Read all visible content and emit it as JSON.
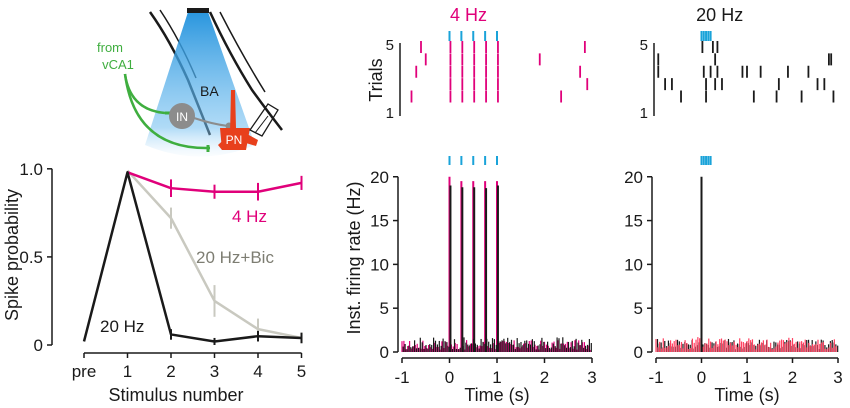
{
  "colors": {
    "magenta": "#e0007a",
    "black": "#1a1a1a",
    "gray": "#c9c9c0",
    "gray_text": "#7d7d72",
    "cyan": "#1aa3d9",
    "green": "#3fae3f",
    "red": "#e8401c",
    "in_gray": "#8c8c8c",
    "light_blue": "#2a9be0",
    "noise_red": "#ff4060"
  },
  "schematic": {
    "from_label": "from",
    "source_label": "vCA1",
    "region_label": "BA",
    "interneuron_label": "IN",
    "principal_label": "PN",
    "icons": [
      "light-cone-icon",
      "interneuron-icon",
      "principal-neuron-icon",
      "electrode-icon"
    ]
  },
  "chart_data": [
    {
      "id": "spike_probability",
      "type": "line",
      "xlabel": "Stimulus number",
      "ylabel": "Spike probability",
      "x_tick_labels": [
        "pre",
        "1",
        "2",
        "3",
        "4",
        "5"
      ],
      "x": [
        0,
        1,
        2,
        3,
        4,
        5
      ],
      "y_ticks": [
        0,
        0.5,
        1.0
      ],
      "y_tick_labels": [
        "0",
        "0.5",
        "1.0"
      ],
      "ylim": [
        0,
        1.05
      ],
      "series": [
        {
          "name": "4 Hz",
          "color": "#e0007a",
          "values": [
            null,
            0.98,
            0.89,
            0.87,
            0.87,
            0.92
          ],
          "errors": [
            0,
            0,
            0.05,
            0.04,
            0.05,
            0.04
          ]
        },
        {
          "name": "20 Hz+Bic",
          "color": "#c9c9c0",
          "label_color": "#7d7d72",
          "values": [
            null,
            0.99,
            0.72,
            0.25,
            0.09,
            0.04
          ],
          "errors": [
            0,
            0,
            0.06,
            0.09,
            0.06,
            0.03
          ]
        },
        {
          "name": "20 Hz",
          "color": "#1a1a1a",
          "values": [
            0.02,
            0.98,
            0.06,
            0.02,
            0.05,
            0.04
          ],
          "errors": [
            0,
            0,
            0.03,
            0.02,
            0.03,
            0.03
          ]
        }
      ]
    },
    {
      "id": "raster_4hz",
      "type": "scatter",
      "title": "4 Hz",
      "ylabel": "Trials",
      "y_tick_labels": [
        "5",
        "1"
      ],
      "xlim": [
        -1,
        3
      ],
      "ylim": [
        1,
        5
      ],
      "stim_times": [
        0,
        0.25,
        0.5,
        0.75,
        1.0
      ],
      "spike_times": [
        {
          "trial": 5,
          "times": [
            -0.6,
            0.02,
            0.27,
            0.52,
            0.77,
            1.02,
            2.85
          ]
        },
        {
          "trial": 4.25,
          "times": [
            -0.5,
            0.02,
            0.27,
            0.52,
            0.77,
            1.02,
            1.9
          ]
        },
        {
          "trial": 3.5,
          "times": [
            -0.7,
            0.02,
            0.27,
            0.52,
            0.77,
            1.02,
            2.75
          ]
        },
        {
          "trial": 2.75,
          "times": [
            0.02,
            0.27,
            0.52,
            0.77,
            1.02,
            2.9
          ]
        },
        {
          "trial": 2.0,
          "times": [
            -0.8,
            0.02,
            0.27,
            0.52,
            0.77,
            1.02,
            2.35
          ]
        }
      ]
    },
    {
      "id": "raster_20hz",
      "type": "scatter",
      "title": "20 Hz",
      "y_tick_labels": [
        "5",
        "1"
      ],
      "xlim": [
        -1,
        3
      ],
      "ylim": [
        1,
        5
      ],
      "stim_times": [
        0,
        0.05,
        0.1,
        0.15,
        0.2
      ],
      "spike_times": [
        {
          "trial": 5,
          "times": [
            0.02,
            0.25,
            0.35
          ]
        },
        {
          "trial": 4.25,
          "times": [
            -0.95,
            0.3,
            2.8,
            2.85
          ]
        },
        {
          "trial": 3.5,
          "times": [
            -0.95,
            0.05,
            0.2,
            0.35,
            0.9,
            1.0,
            1.3,
            1.9,
            2.35
          ]
        },
        {
          "trial": 2.75,
          "times": [
            -0.8,
            -0.65,
            0.1,
            0.3,
            0.45,
            1.7,
            2.55,
            2.7
          ]
        },
        {
          "trial": 2.0,
          "times": [
            -0.45,
            0.1,
            1.15,
            1.65,
            2.2,
            2.9
          ]
        }
      ]
    },
    {
      "id": "psth_4hz",
      "type": "bar",
      "xlabel": "Time (s)",
      "ylabel": "Inst. firing rate (Hz)",
      "x_tick_labels": [
        "-1",
        "0",
        "1",
        "2",
        "3"
      ],
      "y_ticks": [
        0,
        5,
        10,
        15,
        20
      ],
      "xlim": [
        -1,
        3
      ],
      "ylim": [
        0,
        21
      ],
      "stim_times": [
        0,
        0.25,
        0.5,
        0.75,
        1.0
      ],
      "series": [
        {
          "name": "4 Hz",
          "color": "#e0007a",
          "peaks": [
            {
              "t": 0,
              "v": 20
            },
            {
              "t": 0.25,
              "v": 19.5
            },
            {
              "t": 0.5,
              "v": 19.5
            },
            {
              "t": 0.75,
              "v": 19.5
            },
            {
              "t": 1.0,
              "v": 19.5
            }
          ],
          "baseline": 0.8
        },
        {
          "name": "20 Hz",
          "color": "#1a1a1a",
          "peaks": [
            {
              "t": 0.02,
              "v": 19
            },
            {
              "t": 0.27,
              "v": 18.8
            },
            {
              "t": 0.52,
              "v": 18.8
            },
            {
              "t": 0.77,
              "v": 18.7
            },
            {
              "t": 1.02,
              "v": 19
            }
          ],
          "baseline": 1.0
        }
      ]
    },
    {
      "id": "psth_20hz",
      "type": "bar",
      "xlabel": "Time (s)",
      "x_tick_labels": [
        "-1",
        "0",
        "1",
        "2",
        "3"
      ],
      "y_ticks": [
        0,
        5,
        10,
        15,
        20
      ],
      "xlim": [
        -1,
        3
      ],
      "ylim": [
        0,
        21
      ],
      "stim_times": [
        0,
        0.05,
        0.1,
        0.15,
        0.2
      ],
      "series": [
        {
          "name": "20 Hz",
          "color": "#1a1a1a",
          "peaks": [
            {
              "t": 0,
              "v": 20
            }
          ],
          "baseline": 1.0,
          "noise_color": "#ff4060"
        }
      ]
    }
  ]
}
